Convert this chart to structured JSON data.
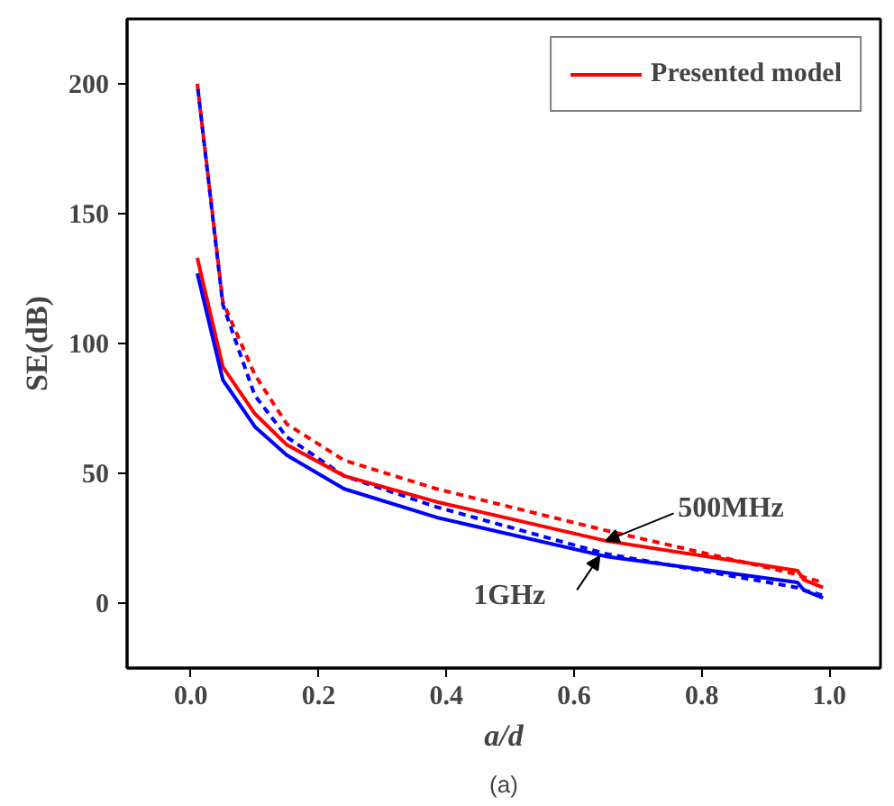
{
  "chart_data": {
    "type": "line",
    "xlabel": "a/d",
    "ylabel": "SE(dB)",
    "x": [
      0.01,
      0.05,
      0.1,
      0.15,
      0.24,
      0.385,
      0.65,
      0.95,
      0.96,
      0.99
    ],
    "series": [
      {
        "color": "#ff0000",
        "line_style": "dashed",
        "values": [
          200,
          116,
          88,
          69,
          55,
          44,
          28,
          11,
          10,
          8
        ]
      },
      {
        "color": "#0000ff",
        "line_style": "dashed",
        "values": [
          200,
          115,
          80,
          64,
          49,
          37,
          19,
          6,
          5,
          3
        ]
      },
      {
        "name": "Presented model",
        "color": "#ff0000",
        "line_style": "solid",
        "values": [
          133,
          91,
          73,
          61,
          49,
          39,
          24,
          12.5,
          9,
          6
        ]
      },
      {
        "color": "#0000ff",
        "line_style": "solid",
        "values": [
          127,
          86,
          68,
          57,
          44,
          33,
          18,
          8,
          5,
          2
        ]
      }
    ],
    "xlim": [
      -0.1,
      1.08
    ],
    "ylim": [
      -25,
      225
    ],
    "xticks": [
      "0.0",
      0.2,
      0.4,
      0.6,
      0.8,
      "1.0"
    ],
    "yticks": [
      0,
      50,
      100,
      150,
      200
    ],
    "annotations": [
      {
        "text": "500MHz",
        "x": 0.65,
        "y": 24
      },
      {
        "text": "1GHz",
        "x": 0.64,
        "y": 18
      },
      "(a)"
    ],
    "grid": false,
    "legend": "top right",
    "marker": "none"
  }
}
